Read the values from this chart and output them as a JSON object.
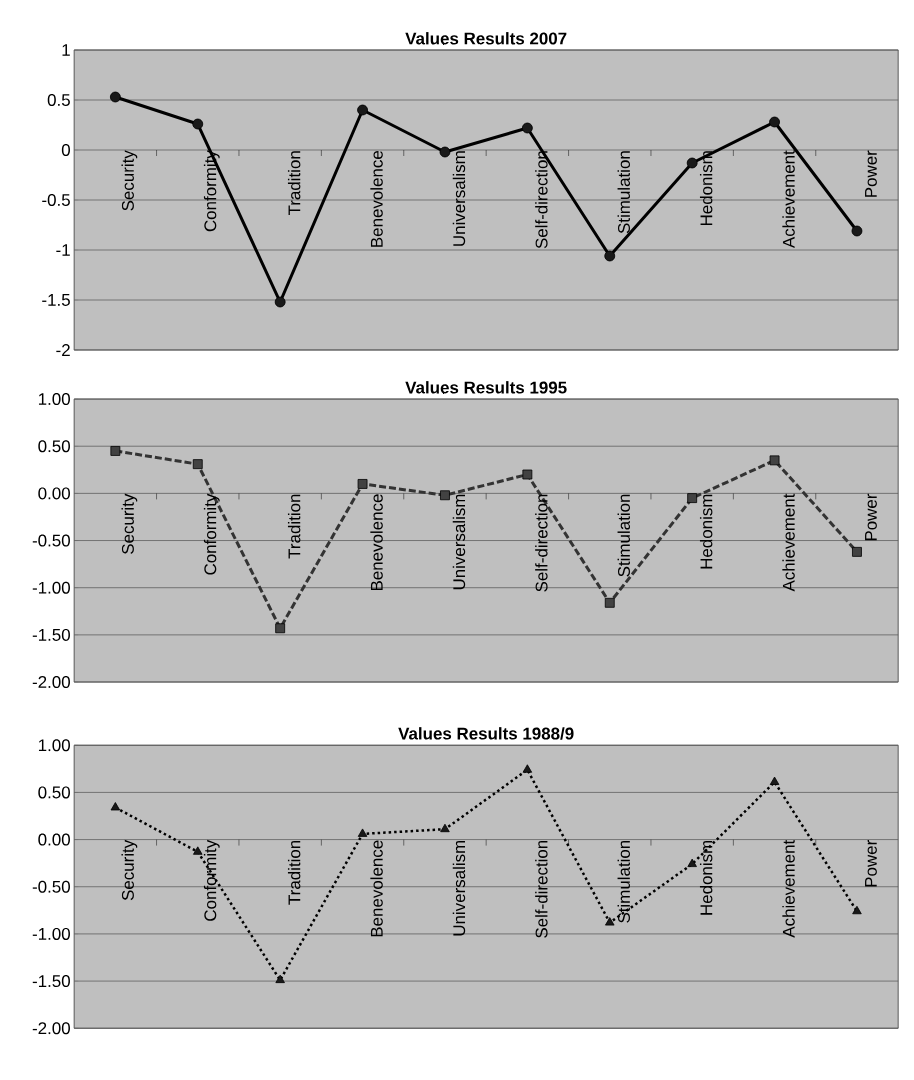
{
  "chart_data": [
    {
      "type": "line",
      "title": "Values Results 2007",
      "categories": [
        "Security",
        "Conformity",
        "Tradition",
        "Benevolence",
        "Universalism",
        "Self-direction",
        "Stimulation",
        "Hedonism",
        "Achievement",
        "Power"
      ],
      "series": [
        {
          "color": "#000000",
          "values": [
            0.53,
            0.26,
            -1.52,
            0.4,
            -0.02,
            0.22,
            -1.06,
            -0.13,
            0.28,
            -0.81
          ]
        }
      ],
      "ylim": [
        -2,
        1
      ],
      "yticks": [
        -2,
        -1.5,
        -1,
        -0.5,
        0,
        0.5,
        1
      ],
      "grid": "y",
      "marker": "circle",
      "line_style": "solid"
    },
    {
      "type": "line",
      "title": "Values Results 1995",
      "categories": [
        "Security",
        "Conformity",
        "Tradition",
        "Benevolence",
        "Universalism",
        "Self-direction",
        "Stimulation",
        "Hedonism",
        "Achievement",
        "Power"
      ],
      "series": [
        {
          "color": "#333333",
          "values": [
            0.45,
            0.31,
            -1.43,
            0.1,
            -0.02,
            0.2,
            -1.16,
            -0.05,
            0.35,
            -0.62
          ]
        }
      ],
      "ylim": [
        -2,
        1
      ],
      "yticks": [
        {
          "value": -2,
          "label": "-2.00"
        },
        {
          "value": -1.5,
          "label": "-1.50"
        },
        {
          "value": -1,
          "label": "-1.00"
        },
        {
          "value": -0.5,
          "label": "-0.50"
        },
        {
          "value": 0,
          "label": "0.00"
        },
        {
          "value": 0.5,
          "label": "0.50"
        },
        {
          "value": 1,
          "label": "1.00"
        }
      ],
      "grid": "y",
      "marker": "square",
      "line_style": "dashed"
    },
    {
      "type": "line",
      "title": "Values Results 1988/9",
      "categories": [
        "Security",
        "Conformity",
        "Tradition",
        "Benevolence",
        "Universalism",
        "Self-direction",
        "Stimulation",
        "Hedonism",
        "Achievement",
        "Power"
      ],
      "series": [
        {
          "color": "#000000",
          "values": [
            0.34,
            -0.13,
            -1.49,
            0.06,
            0.11,
            0.74,
            -0.88,
            -0.26,
            0.61,
            -0.76
          ]
        }
      ],
      "ylim": [
        -2,
        1
      ],
      "yticks": [
        {
          "value": -2,
          "label": "-2.00"
        },
        {
          "value": -1.5,
          "label": "-1.50"
        },
        {
          "value": -1,
          "label": "-1.00"
        },
        {
          "value": -0.5,
          "label": "-0.50"
        },
        {
          "value": 0,
          "label": "0.00"
        },
        {
          "value": 0.5,
          "label": "0.50"
        },
        {
          "value": 1,
          "label": "1.00"
        }
      ],
      "grid": "y",
      "marker": "triangle",
      "line_style": "dotted"
    }
  ]
}
